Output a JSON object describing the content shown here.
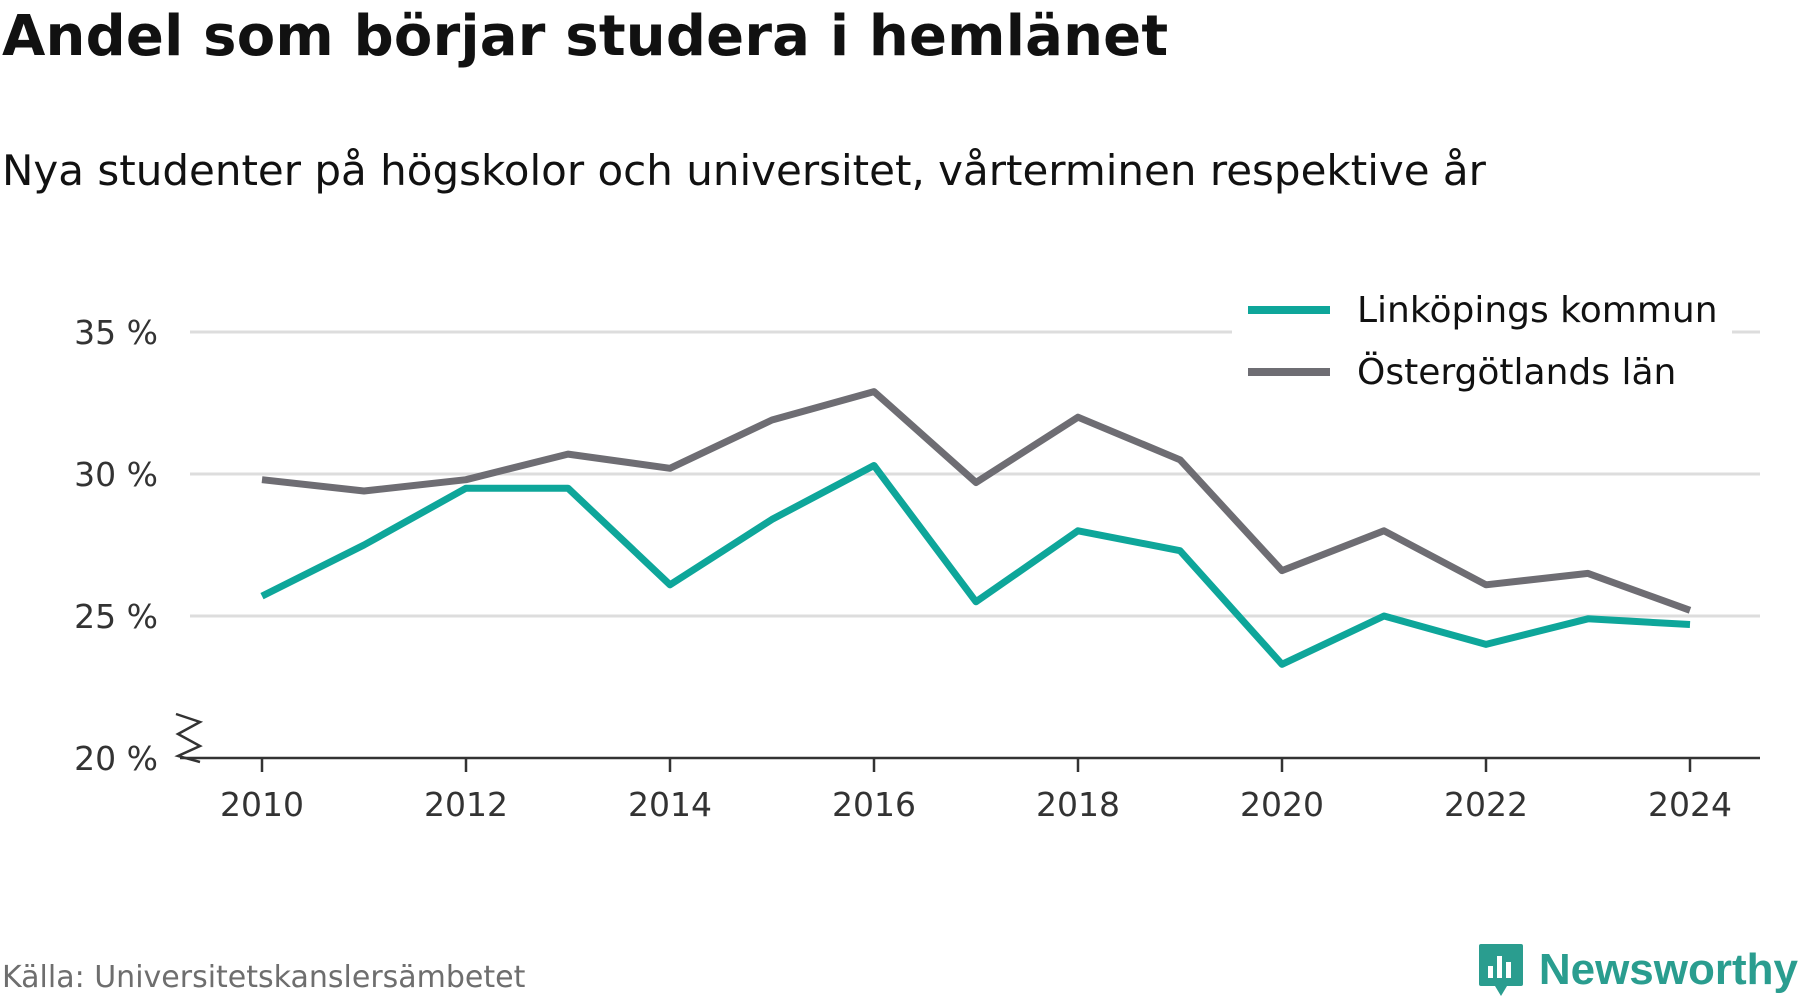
{
  "header": {
    "title": "Andel som börjar studera i hemlänet",
    "subtitle": "Nya studenter på högskolor och universitet, vårterminen respektive år"
  },
  "footer": {
    "source": "Källa: Universitetskanslersämbetet",
    "brand": "Newsworthy"
  },
  "colors": {
    "linkoping": "#0ea69a",
    "ostergotland": "#6e6d73",
    "grid": "#dddddd",
    "axis": "#333333",
    "brand": "#2a9d8f"
  },
  "icons": {
    "logo": "bar-chart-speech-bubble-icon",
    "axis_break": "axis-break-zigzag-icon"
  },
  "chart_data": {
    "type": "line",
    "title": "Andel som börjar studera i hemlänet",
    "subtitle": "Nya studenter på högskolor och universitet, vårterminen respektive år",
    "xlabel": "",
    "ylabel": "",
    "x": [
      2010,
      2011,
      2012,
      2013,
      2014,
      2015,
      2016,
      2017,
      2018,
      2019,
      2020,
      2021,
      2022,
      2023,
      2024
    ],
    "xticks": [
      2010,
      2012,
      2014,
      2016,
      2018,
      2020,
      2022,
      2024
    ],
    "xtick_labels": [
      "2010",
      "2012",
      "2014",
      "2016",
      "2018",
      "2020",
      "2022",
      "2024"
    ],
    "ylim": [
      20,
      35
    ],
    "yticks": [
      20,
      25,
      30,
      35
    ],
    "ytick_labels": [
      "20 %",
      "25 %",
      "30 %",
      "35 %"
    ],
    "y_axis_broken": true,
    "grid": true,
    "legend_position": "top-right",
    "series": [
      {
        "name": "Linköpings kommun",
        "color": "#0ea69a",
        "values": [
          25.7,
          27.5,
          29.5,
          29.5,
          26.1,
          28.4,
          30.3,
          25.5,
          28.0,
          27.3,
          23.3,
          25.0,
          24.0,
          24.9,
          24.7
        ]
      },
      {
        "name": "Östergötlands län",
        "color": "#6e6d73",
        "values": [
          29.8,
          29.4,
          29.8,
          30.7,
          30.2,
          31.9,
          32.9,
          29.7,
          32.0,
          30.5,
          26.6,
          28.0,
          26.1,
          26.5,
          25.2
        ]
      }
    ]
  }
}
